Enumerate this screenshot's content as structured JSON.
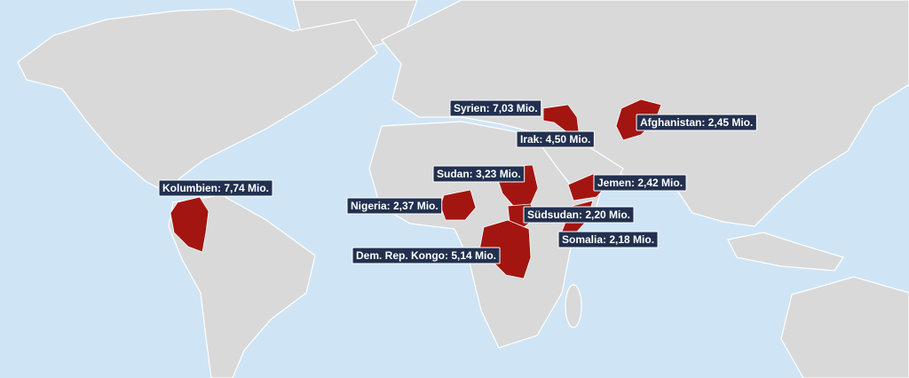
{
  "map": {
    "labels": [
      "Kolumbien: 7,74 Mio.",
      "Syrien: 7,03 Mio.",
      "Irak: 4,50 Mio.",
      "Afghanistan: 2,45 Mio.",
      "Sudan: 3,23 Mio.",
      "Jemen: 2,42 Mio.",
      "Nigeria: 2,37 Mio.",
      "Südsudan: 2,20 Mio.",
      "Somalia: 2,18 Mio.",
      "Dem. Rep. Kongo: 5,14 Mio."
    ]
  }
}
